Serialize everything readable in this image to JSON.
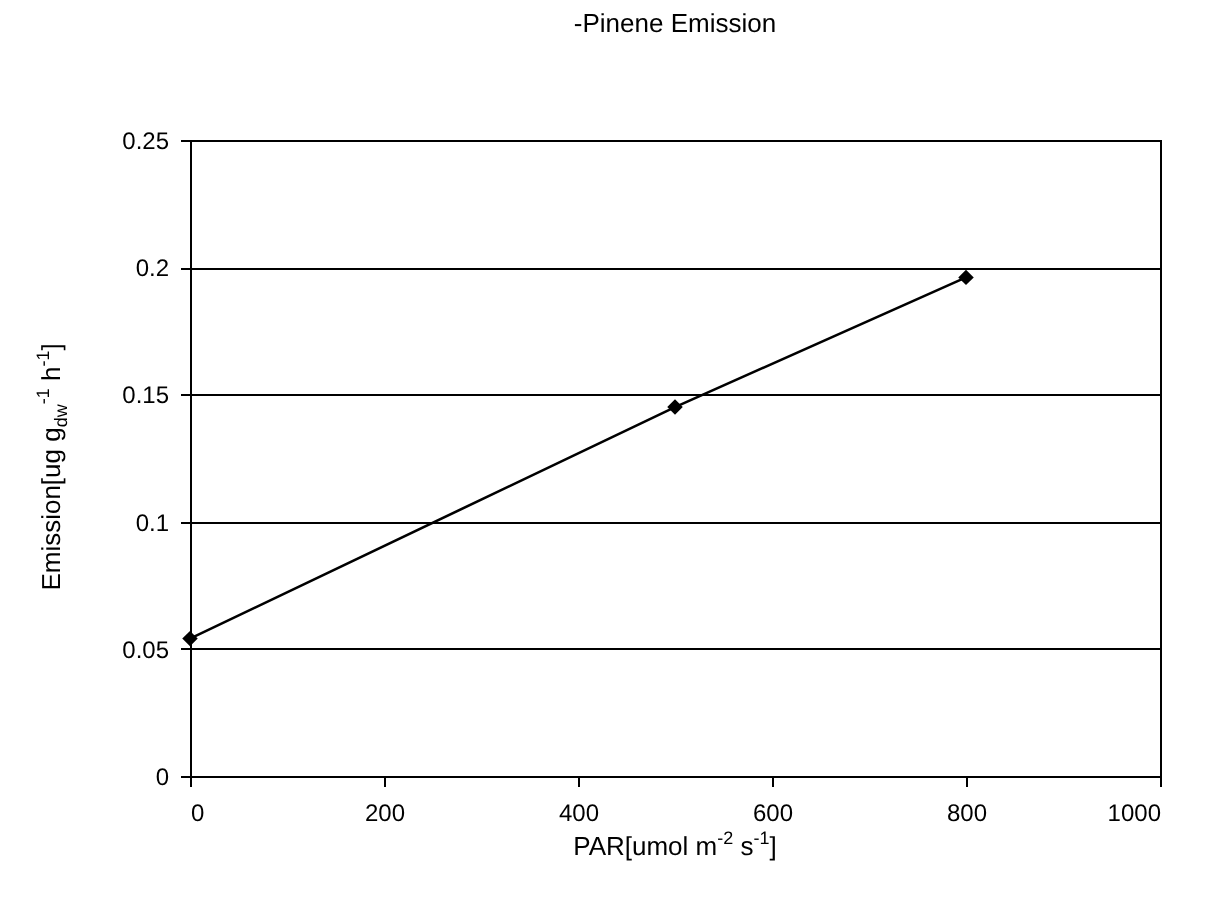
{
  "chart_data": {
    "type": "line",
    "title": "-Pinene Emission",
    "xlabel": "PAR[umol m$^{-2}$ s$^{-1}$]",
    "ylabel": "Emission[ug g$_{dw}$$^{-1}$ h$^{-1}$]",
    "x": [
      0,
      500,
      800
    ],
    "series": [
      {
        "color": "#000000",
        "values": [
          0.054,
          0.145,
          0.196
        ]
      }
    ],
    "xlim": [
      0,
      1000
    ],
    "xticks": [
      0,
      200,
      400,
      600,
      800,
      1000
    ],
    "ylim": [
      0,
      0.25
    ],
    "yticks": [
      0,
      0.05,
      0.1,
      0.15,
      0.2,
      0.25
    ],
    "grid": "y",
    "marker": "diamond",
    "line_style": "solid"
  }
}
